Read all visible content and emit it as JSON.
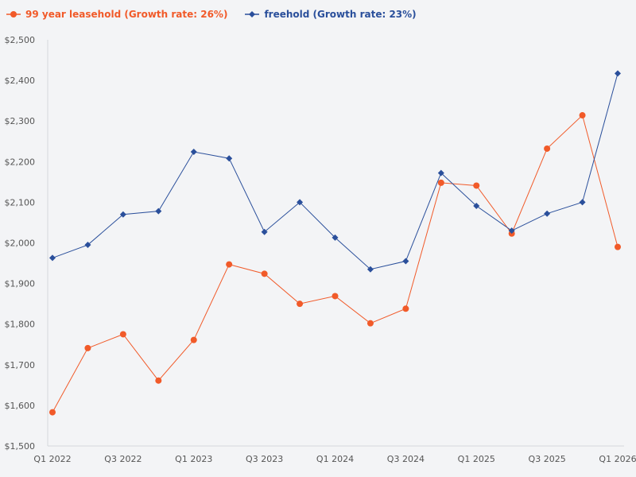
{
  "chart_data": {
    "type": "line",
    "title": "",
    "xlabel": "",
    "ylabel": "",
    "ylim": [
      1500,
      2500
    ],
    "yticks": [
      1500,
      1600,
      1700,
      1800,
      1900,
      2000,
      2100,
      2200,
      2300,
      2400,
      2500
    ],
    "ytick_labels": [
      "$1,500",
      "$1,600",
      "$1,700",
      "$1,800",
      "$1,900",
      "$2,000",
      "$2,100",
      "$2,200",
      "$2,300",
      "$2,400",
      "$2,500"
    ],
    "categories": [
      "Q1 2022",
      "Q2 2022",
      "Q3 2022",
      "Q4 2022",
      "Q1 2023",
      "Q2 2023",
      "Q3 2023",
      "Q4 2023",
      "Q1 2024",
      "Q2 2024",
      "Q3 2024",
      "Q4 2024",
      "Q1 2025",
      "Q2 2025",
      "Q3 2025",
      "Q4 2025",
      "Q1 2026"
    ],
    "xtick_labels_shown": [
      "Q1 2022",
      "Q3 2022",
      "Q1 2023",
      "Q3 2023",
      "Q1 2024",
      "Q3 2024",
      "Q1 2025",
      "Q3 2025",
      "Q1 2026"
    ],
    "grid": false,
    "legend_position": "top-left",
    "series": [
      {
        "name": "99 year leasehold (Growth rate: 26%)",
        "color": "#f15a29",
        "marker": "circle",
        "values": [
          1583,
          1741,
          1775,
          1661,
          1761,
          1947,
          1924,
          1850,
          1869,
          1802,
          1838,
          2148,
          2141,
          2023,
          2232,
          2314,
          1990
        ]
      },
      {
        "name": "freehold (Growth rate: 23%)",
        "color": "#2a4f9b",
        "marker": "diamond",
        "values": [
          1963,
          1995,
          2070,
          2078,
          2224,
          2208,
          2027,
          2100,
          2013,
          1935,
          1955,
          2172,
          2091,
          2030,
          2072,
          2100,
          2417
        ]
      }
    ]
  }
}
